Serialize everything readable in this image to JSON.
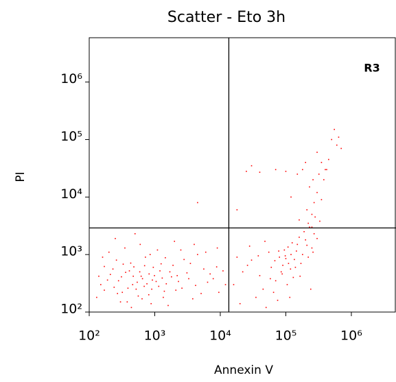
{
  "chart_data": {
    "type": "scatter",
    "title": "Scatter - Eto 3h",
    "x_label": "Annexin V",
    "y_label": "PI",
    "annotation": "R3",
    "log_x": true,
    "log_y": true,
    "color": "#ff0000",
    "xlim": [
      100,
      4800000
    ],
    "ylim": [
      100,
      5900000
    ],
    "xticks": [
      {
        "value": 100,
        "label": "10²"
      },
      {
        "value": 1000,
        "label": "10³"
      },
      {
        "value": 10000,
        "label": "10⁴"
      },
      {
        "value": 100000,
        "label": "10⁵"
      },
      {
        "value": 1000000,
        "label": "10⁶"
      }
    ],
    "yticks": [
      {
        "value": 100,
        "label": "10²"
      },
      {
        "value": 1000,
        "label": "10³"
      },
      {
        "value": 10000,
        "label": "10⁴"
      },
      {
        "value": 100000,
        "label": "10⁵"
      },
      {
        "value": 1000000,
        "label": "10⁶"
      }
    ],
    "quadrant_x": 13500,
    "quadrant_y": 2900,
    "x": [
      150,
      210,
      320,
      480,
      650,
      900,
      1200,
      380,
      260,
      540,
      720,
      1800,
      2600,
      3500,
      130,
      170,
      240,
      310,
      410,
      560,
      690,
      820,
      1050,
      1400,
      1900,
      2300,
      3100,
      4200,
      5600,
      7800,
      9500,
      200,
      350,
      600,
      1100,
      2000,
      440,
      880,
      1600,
      280,
      390,
      470,
      590,
      760,
      950,
      1300,
      170,
      230,
      330,
      520,
      640,
      1150,
      1700,
      2800,
      4500,
      6400,
      8800,
      12000,
      140,
      190,
      300,
      430,
      620,
      810,
      990,
      1250,
      1500,
      2100,
      3300,
      5100,
      7000,
      11000,
      160,
      250,
      500,
      850,
      1450,
      2500,
      4000,
      6000,
      9000,
      270,
      360,
      460,
      700,
      920,
      1350,
      2200,
      3800,
      16000,
      22000,
      30000,
      45000,
      60000,
      80000,
      95000,
      110000,
      130000,
      150000,
      180000,
      200000,
      250000,
      35000,
      55000,
      70000,
      90000,
      100000,
      120000,
      140000,
      160000,
      190000,
      220000,
      28000,
      40000,
      65000,
      85000,
      105000,
      125000,
      170000,
      20000,
      50000,
      75000,
      115000,
      240000,
      300000,
      18000,
      26000,
      38000,
      48000,
      58000,
      68000,
      78000,
      88000,
      98000,
      108000,
      118000,
      135000,
      145000,
      165000,
      210000,
      270000,
      230000,
      260000,
      220000,
      250000,
      270000,
      300000,
      320000,
      350000,
      400000,
      500000,
      550000,
      700000,
      600000,
      300000,
      260000,
      230000,
      210000,
      180000,
      150000,
      100000,
      70000,
      30000,
      25000,
      120000,
      40000,
      280000,
      350000,
      420000,
      450000,
      200000,
      380000,
      330000,
      18000,
      4500,
      250000,
      160000,
      640000
    ],
    "values": [
      300,
      450,
      220,
      610,
      380,
      250,
      520,
      150,
      800,
      330,
      900,
      410,
      260,
      700,
      180,
      620,
      270,
      410,
      520,
      190,
      280,
      460,
      340,
      230,
      650,
      340,
      480,
      290,
      560,
      380,
      220,
      1100,
      1300,
      1500,
      1200,
      1700,
      120,
      140,
      130,
      350,
      260,
      420,
      500,
      310,
      600,
      390,
      240,
      560,
      680,
      250,
      170,
      280,
      500,
      820,
      1000,
      330,
      610,
      300,
      420,
      360,
      150,
      710,
      420,
      200,
      430,
      690,
      310,
      240,
      380,
      210,
      460,
      520,
      900,
      1900,
      2300,
      1000,
      880,
      1200,
      1500,
      1100,
      1300,
      210,
      490,
      300,
      640,
      360,
      180,
      430,
      170,
      300,
      500,
      800,
      250,
      600,
      900,
      1200,
      700,
      400,
      1500,
      1000,
      1800,
      1300,
      180,
      1100,
      350,
      650,
      850,
      1000,
      600,
      2000,
      2500,
      900,
      1400,
      430,
      220,
      500,
      300,
      1600,
      700,
      140,
      120,
      160,
      180,
      250,
      1900,
      900,
      650,
      950,
      1700,
      380,
      780,
      1150,
      460,
      950,
      1350,
      560,
      820,
      1150,
      420,
      1450,
      2300,
      3000,
      1100,
      3500,
      5000,
      8000,
      12000,
      25000,
      40000,
      30000,
      100000,
      150000,
      70000,
      80000,
      60000,
      20000,
      15000,
      6000,
      30000,
      25000,
      28000,
      30000,
      35000,
      28000,
      10000,
      27000,
      4500,
      9000,
      30000,
      45000,
      40000,
      20000,
      3800,
      6000,
      8000,
      3000,
      4000,
      110000
    ]
  }
}
